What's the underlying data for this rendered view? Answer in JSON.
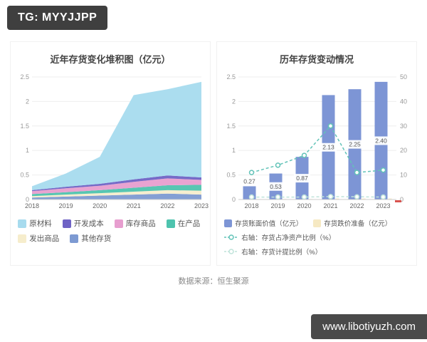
{
  "badge_top": "TG: MYYJJPP",
  "watermark": "www.libotiyuzh.com",
  "source": "数据来源：恒生聚源",
  "chart_data": [
    {
      "type": "area",
      "title": "近年存货变化堆积图（亿元）",
      "x": [
        "2018",
        "2019",
        "2020",
        "2021",
        "2022",
        "2023"
      ],
      "stacked": true,
      "ylim": [
        0,
        2.5
      ],
      "yticks": [
        0,
        0.5,
        1,
        1.5,
        2,
        2.5
      ],
      "grid": true,
      "series": [
        {
          "name": "其他存货",
          "color": "#7d9ad2",
          "values": [
            0.04,
            0.06,
            0.08,
            0.1,
            0.12,
            0.1
          ]
        },
        {
          "name": "发出商品",
          "color": "#f6edcc",
          "values": [
            0.03,
            0.04,
            0.05,
            0.06,
            0.07,
            0.08
          ]
        },
        {
          "name": "在产品",
          "color": "#4ec3ae",
          "values": [
            0.04,
            0.05,
            0.06,
            0.08,
            0.1,
            0.12
          ]
        },
        {
          "name": "库存商品",
          "color": "#e79ecf",
          "values": [
            0.06,
            0.08,
            0.09,
            0.12,
            0.14,
            0.1
          ]
        },
        {
          "name": "开发成本",
          "color": "#6f63c5",
          "values": [
            0.02,
            0.03,
            0.04,
            0.05,
            0.06,
            0.05
          ]
        },
        {
          "name": "原材料",
          "color": "#a7dbee",
          "values": [
            0.08,
            0.27,
            0.55,
            1.72,
            1.76,
            1.95
          ]
        }
      ],
      "totals": [
        0.27,
        0.53,
        0.87,
        2.13,
        2.25,
        2.4
      ],
      "legend_rows": [
        [
          {
            "label": "原材料",
            "color": "#a7dbee",
            "type": "square"
          },
          {
            "label": "开发成本",
            "color": "#6f63c5",
            "type": "square"
          },
          {
            "label": "库存商品",
            "color": "#e79ecf",
            "type": "square"
          },
          {
            "label": "在产品",
            "color": "#4ec3ae",
            "type": "square"
          }
        ],
        [
          {
            "label": "发出商品",
            "color": "#f6edcc",
            "type": "square"
          },
          {
            "label": "其他存货",
            "color": "#7d9ad2",
            "type": "square"
          }
        ]
      ]
    },
    {
      "type": "combo",
      "title": "历年存货变动情况",
      "x": [
        "2018",
        "2019",
        "2020",
        "2021",
        "2022",
        "2023"
      ],
      "ylim_left": [
        0,
        2.5
      ],
      "yticks_left": [
        0,
        0.5,
        1,
        1.5,
        2,
        2.5
      ],
      "ylim_right": [
        0,
        50
      ],
      "yticks_right": [
        0,
        10,
        20,
        30,
        40,
        50
      ],
      "grid": true,
      "axis_marker_color": "#d9534f",
      "bars": [
        {
          "name": "存货账面价值（亿元）",
          "color": "#7d95d5",
          "values": [
            0.27,
            0.53,
            0.87,
            2.13,
            2.25,
            2.4
          ],
          "labels": [
            "0.27",
            "0.53",
            "0.87",
            "2.13",
            "2.25",
            "2.40"
          ]
        },
        {
          "name": "存货跌价准备（亿元）",
          "color": "#f6e9c3",
          "values": [
            0.01,
            0.01,
            0.01,
            0.02,
            0.02,
            0.02
          ]
        }
      ],
      "lines": [
        {
          "name": "右轴：存货占净资产比例（%）",
          "color": "#62c3b8",
          "axis": "right",
          "dashed": true,
          "values": [
            11,
            14,
            18,
            30,
            11,
            12
          ]
        },
        {
          "name": "右轴：存货计提比例（%）",
          "color": "#bfe3da",
          "axis": "right",
          "dashed": true,
          "values": [
            1,
            1,
            1,
            1.2,
            1.1,
            1.0
          ]
        }
      ],
      "legend_rows": [
        [
          {
            "label": "存货账面价值（亿元）",
            "color": "#7d95d5",
            "type": "square"
          },
          {
            "label": "存货跌价准备（亿元）",
            "color": "#f6e9c3",
            "type": "square"
          }
        ],
        [
          {
            "label": "右轴：存货占净资产比例（%）",
            "color": "#62c3b8",
            "type": "line"
          }
        ],
        [
          {
            "label": "右轴：存货计提比例（%）",
            "color": "#bfe3da",
            "type": "line"
          }
        ]
      ]
    }
  ]
}
